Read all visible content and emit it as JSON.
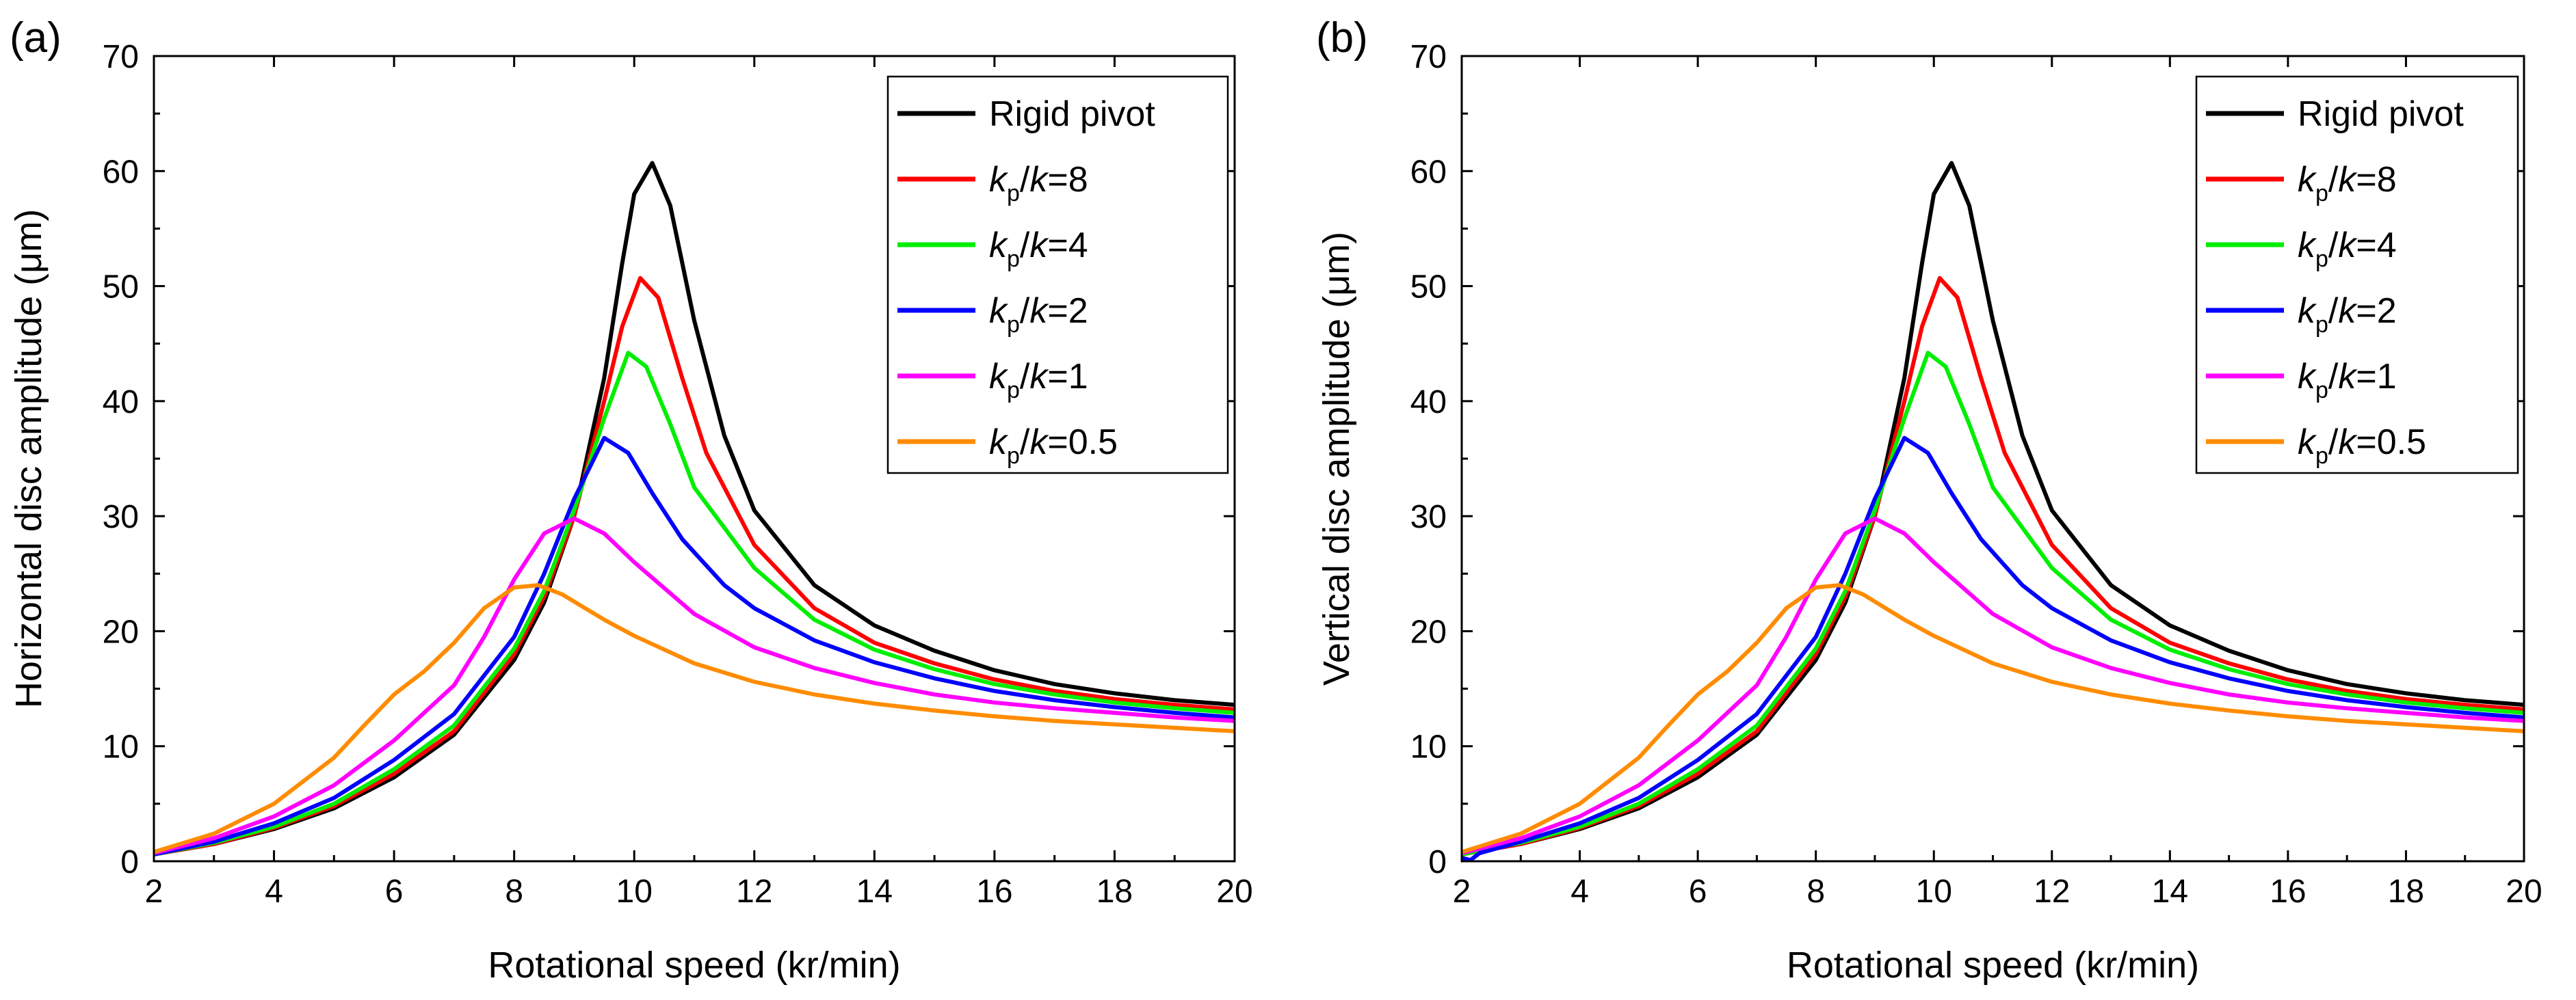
{
  "chart_data": [
    {
      "type": "line",
      "panel": "(a)",
      "xlabel": "Rotational speed (kr/min)",
      "ylabel": "Horizontal disc amplitude (μm)",
      "xlim": [
        2,
        20
      ],
      "ylim": [
        0,
        70
      ],
      "xticks": [
        "2",
        "4",
        "6",
        "8",
        "10",
        "12",
        "14",
        "16",
        "18",
        "20"
      ],
      "yticks": [
        "0",
        "10",
        "20",
        "30",
        "40",
        "50",
        "60",
        "70"
      ],
      "legend_position": "top-right",
      "series": [
        {
          "name": "Rigid pivot",
          "label_parts": [
            [
              "Rigid pivot",
              "n"
            ]
          ],
          "color": "#000000",
          "x": [
            2,
            3,
            4,
            5,
            6,
            7,
            8,
            8.5,
            9,
            9.5,
            9.8,
            10,
            10.3,
            10.6,
            11,
            11.5,
            12,
            13,
            14,
            15,
            16,
            17,
            18,
            19,
            20
          ],
          "y": [
            0.6,
            1.5,
            2.8,
            4.6,
            7.3,
            11,
            17.5,
            22.5,
            30,
            42,
            52,
            58,
            60.7,
            57,
            47,
            37,
            30.5,
            24,
            20.5,
            18.3,
            16.6,
            15.4,
            14.6,
            14,
            13.6
          ]
        },
        {
          "name": "kp/k=8",
          "label_parts": [
            [
              "k",
              "i"
            ],
            [
              "p",
              "s"
            ],
            [
              "/",
              "n"
            ],
            [
              "k",
              "i"
            ],
            [
              "=8",
              "n"
            ]
          ],
          "color": "#ff0000",
          "x": [
            2,
            3,
            4,
            5,
            6,
            7,
            8,
            8.5,
            9,
            9.5,
            9.8,
            10.1,
            10.4,
            10.8,
            11.2,
            12,
            13,
            14,
            15,
            16,
            17,
            18,
            19,
            20
          ],
          "y": [
            0.6,
            1.5,
            2.9,
            4.8,
            7.6,
            11.3,
            18,
            23,
            30,
            40,
            46.5,
            50.7,
            49,
            42,
            35.5,
            27.5,
            22,
            19,
            17.2,
            15.8,
            14.8,
            14.1,
            13.6,
            13.2
          ]
        },
        {
          "name": "kp/k=4",
          "label_parts": [
            [
              "k",
              "i"
            ],
            [
              "p",
              "s"
            ],
            [
              "/",
              "n"
            ],
            [
              "k",
              "i"
            ],
            [
              "=4",
              "n"
            ]
          ],
          "color": "#00ee00",
          "x": [
            2,
            3,
            4,
            5,
            6,
            7,
            8,
            8.5,
            9,
            9.5,
            9.9,
            10.2,
            10.6,
            11,
            12,
            13,
            14,
            15,
            16,
            17,
            18,
            19,
            20
          ],
          "y": [
            0.6,
            1.6,
            3,
            5,
            8,
            11.8,
            18.5,
            23.5,
            30.5,
            38.5,
            44.2,
            43,
            38,
            32.5,
            25.5,
            21,
            18.4,
            16.7,
            15.4,
            14.5,
            13.8,
            13.3,
            12.9
          ]
        },
        {
          "name": "kp/k=2",
          "label_parts": [
            [
              "k",
              "i"
            ],
            [
              "p",
              "s"
            ],
            [
              "/",
              "n"
            ],
            [
              "k",
              "i"
            ],
            [
              "=2",
              "n"
            ]
          ],
          "color": "#0000ff",
          "x": [
            2,
            3,
            4,
            5,
            6,
            7,
            8,
            8.5,
            9,
            9.5,
            9.9,
            10.3,
            10.8,
            11.5,
            12,
            13,
            14,
            15,
            16,
            17,
            18,
            19,
            20
          ],
          "y": [
            0.6,
            1.7,
            3.3,
            5.5,
            8.8,
            12.8,
            19.5,
            25,
            31.5,
            36.8,
            35.5,
            32,
            28,
            24,
            22,
            19.2,
            17.3,
            15.9,
            14.8,
            14,
            13.4,
            12.9,
            12.5
          ]
        },
        {
          "name": "kp/k=1",
          "label_parts": [
            [
              "k",
              "i"
            ],
            [
              "p",
              "s"
            ],
            [
              "/",
              "n"
            ],
            [
              "k",
              "i"
            ],
            [
              "=1",
              "n"
            ]
          ],
          "color": "#ff00ff",
          "x": [
            2,
            3,
            4,
            5,
            6,
            7,
            7.5,
            8,
            8.5,
            9,
            9.5,
            10,
            11,
            12,
            13,
            14,
            15,
            16,
            17,
            18,
            19,
            20
          ],
          "y": [
            0.7,
            2,
            3.9,
            6.6,
            10.5,
            15.3,
            19.5,
            24.5,
            28.5,
            29.8,
            28.5,
            26,
            21.5,
            18.6,
            16.8,
            15.5,
            14.5,
            13.8,
            13.3,
            12.9,
            12.5,
            12.2
          ]
        },
        {
          "name": "kp/k=0.5",
          "label_parts": [
            [
              "k",
              "i"
            ],
            [
              "p",
              "s"
            ],
            [
              "/",
              "n"
            ],
            [
              "k",
              "i"
            ],
            [
              "=0.5",
              "n"
            ]
          ],
          "color": "#ff8c00",
          "x": [
            2,
            3,
            4,
            5,
            5.5,
            6,
            6.5,
            7,
            7.5,
            8,
            8.4,
            8.8,
            9.5,
            10,
            11,
            12,
            13,
            14,
            15,
            16,
            17,
            18,
            19,
            20
          ],
          "y": [
            0.8,
            2.4,
            5,
            9,
            11.8,
            14.5,
            16.5,
            19,
            22,
            23.8,
            24,
            23.2,
            21,
            19.6,
            17.2,
            15.6,
            14.5,
            13.7,
            13.1,
            12.6,
            12.2,
            11.9,
            11.6,
            11.3
          ]
        }
      ]
    },
    {
      "type": "line",
      "panel": "(b)",
      "xlabel": "Rotational speed (kr/min)",
      "ylabel": "Vertical disc amplitude (μm)",
      "xlim": [
        2,
        20
      ],
      "ylim": [
        0,
        70
      ],
      "xticks": [
        "2",
        "4",
        "6",
        "8",
        "10",
        "12",
        "14",
        "16",
        "18",
        "20"
      ],
      "yticks": [
        "0",
        "10",
        "20",
        "30",
        "40",
        "50",
        "60",
        "70"
      ],
      "legend_position": "top-right",
      "series": [
        {
          "name": "Rigid pivot",
          "label_parts": [
            [
              "Rigid pivot",
              "n"
            ]
          ],
          "color": "#000000",
          "x": [
            2,
            3,
            4,
            5,
            6,
            7,
            8,
            8.5,
            9,
            9.5,
            9.8,
            10,
            10.3,
            10.6,
            11,
            11.5,
            12,
            13,
            14,
            15,
            16,
            17,
            18,
            19,
            20
          ],
          "y": [
            0.6,
            1.5,
            2.8,
            4.6,
            7.3,
            11,
            17.5,
            22.5,
            30,
            42,
            52,
            58,
            60.7,
            57,
            47,
            37,
            30.5,
            24,
            20.5,
            18.3,
            16.6,
            15.4,
            14.6,
            14,
            13.6
          ]
        },
        {
          "name": "kp/k=8",
          "label_parts": [
            [
              "k",
              "i"
            ],
            [
              "p",
              "s"
            ],
            [
              "/",
              "n"
            ],
            [
              "k",
              "i"
            ],
            [
              "=8",
              "n"
            ]
          ],
          "color": "#ff0000",
          "x": [
            2,
            3,
            4,
            5,
            6,
            7,
            8,
            8.5,
            9,
            9.5,
            9.8,
            10.1,
            10.4,
            10.8,
            11.2,
            12,
            13,
            14,
            15,
            16,
            17,
            18,
            19,
            20
          ],
          "y": [
            0.6,
            1.5,
            2.9,
            4.8,
            7.6,
            11.3,
            18,
            23,
            30,
            40,
            46.5,
            50.7,
            49,
            42,
            35.5,
            27.5,
            22,
            19,
            17.2,
            15.8,
            14.8,
            14.1,
            13.6,
            13.2
          ]
        },
        {
          "name": "kp/k=4",
          "label_parts": [
            [
              "k",
              "i"
            ],
            [
              "p",
              "s"
            ],
            [
              "/",
              "n"
            ],
            [
              "k",
              "i"
            ],
            [
              "=4",
              "n"
            ]
          ],
          "color": "#00ee00",
          "x": [
            2,
            3,
            4,
            5,
            6,
            7,
            8,
            8.5,
            9,
            9.5,
            9.9,
            10.2,
            10.6,
            11,
            12,
            13,
            14,
            15,
            16,
            17,
            18,
            19,
            20
          ],
          "y": [
            0.6,
            1.6,
            3,
            5,
            8,
            11.8,
            18.5,
            23.5,
            30.5,
            38.5,
            44.2,
            43,
            38,
            32.5,
            25.5,
            21,
            18.4,
            16.7,
            15.4,
            14.5,
            13.8,
            13.3,
            12.9
          ]
        },
        {
          "name": "kp/k=2",
          "label_parts": [
            [
              "k",
              "i"
            ],
            [
              "p",
              "s"
            ],
            [
              "/",
              "n"
            ],
            [
              "k",
              "i"
            ],
            [
              "=2",
              "n"
            ]
          ],
          "color": "#0000ff",
          "x": [
            2,
            2.15,
            2.3,
            3,
            4,
            5,
            6,
            7,
            8,
            8.5,
            9,
            9.5,
            9.9,
            10.3,
            10.8,
            11.5,
            12,
            13,
            14,
            15,
            16,
            17,
            18,
            19,
            20
          ],
          "y": [
            0.3,
            0.1,
            0.7,
            1.7,
            3.3,
            5.5,
            8.8,
            12.8,
            19.5,
            25,
            31.5,
            36.8,
            35.5,
            32,
            28,
            24,
            22,
            19.2,
            17.3,
            15.9,
            14.8,
            14,
            13.4,
            12.9,
            12.5
          ]
        },
        {
          "name": "kp/k=1",
          "label_parts": [
            [
              "k",
              "i"
            ],
            [
              "p",
              "s"
            ],
            [
              "/",
              "n"
            ],
            [
              "k",
              "i"
            ],
            [
              "=1",
              "n"
            ]
          ],
          "color": "#ff00ff",
          "x": [
            2,
            3,
            4,
            5,
            6,
            7,
            7.5,
            8,
            8.5,
            9,
            9.5,
            10,
            11,
            12,
            13,
            14,
            15,
            16,
            17,
            18,
            19,
            20
          ],
          "y": [
            0.7,
            2,
            3.9,
            6.6,
            10.5,
            15.3,
            19.5,
            24.5,
            28.5,
            29.8,
            28.5,
            26,
            21.5,
            18.6,
            16.8,
            15.5,
            14.5,
            13.8,
            13.3,
            12.9,
            12.5,
            12.2
          ]
        },
        {
          "name": "kp/k=0.5",
          "label_parts": [
            [
              "k",
              "i"
            ],
            [
              "p",
              "s"
            ],
            [
              "/",
              "n"
            ],
            [
              "k",
              "i"
            ],
            [
              "=0.5",
              "n"
            ]
          ],
          "color": "#ff8c00",
          "x": [
            2,
            3,
            4,
            5,
            5.5,
            6,
            6.5,
            7,
            7.5,
            8,
            8.4,
            8.8,
            9.5,
            10,
            11,
            12,
            13,
            14,
            15,
            16,
            17,
            18,
            19,
            20
          ],
          "y": [
            0.8,
            2.4,
            5,
            9,
            11.8,
            14.5,
            16.5,
            19,
            22,
            23.8,
            24,
            23.2,
            21,
            19.6,
            17.2,
            15.6,
            14.5,
            13.7,
            13.1,
            12.6,
            12.2,
            11.9,
            11.6,
            11.3
          ]
        }
      ]
    }
  ]
}
